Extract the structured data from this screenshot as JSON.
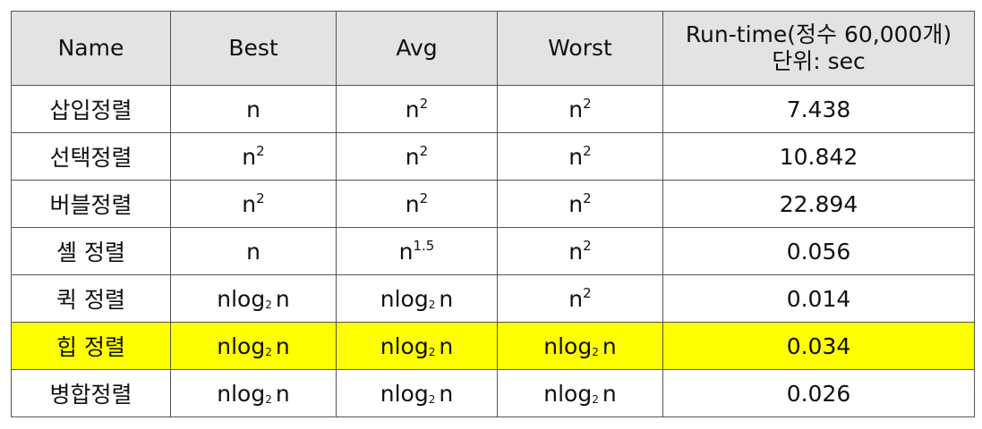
{
  "table": {
    "header": [
      "Name",
      "Best",
      "Avg",
      "Worst",
      [
        "Run-time(정수 60,000개)",
        "단위: sec"
      ]
    ],
    "highlight_row": 5,
    "rows": [
      [
        "삽입정렬",
        "n",
        {
          "text": "n",
          "sup": "2"
        },
        {
          "text": "n",
          "sup": "2"
        },
        "7.438"
      ],
      [
        "선택정렬",
        {
          "text": "n",
          "sup": "2"
        },
        {
          "text": "n",
          "sup": "2"
        },
        {
          "text": "n",
          "sup": "2"
        },
        "10.842"
      ],
      [
        "버블정렬",
        {
          "text": "n",
          "sup": "2"
        },
        {
          "text": "n",
          "sup": "2"
        },
        {
          "text": "n",
          "sup": "2"
        },
        "22.894"
      ],
      [
        "셸 정렬",
        "n",
        {
          "text": "n",
          "sup": "1.5"
        },
        {
          "text": "n",
          "sup": "2"
        },
        "0.056"
      ],
      [
        "퀵 정렬",
        {
          "text": "nlog",
          "sub": "2",
          "after": "n"
        },
        {
          "text": "nlog",
          "sub": "2",
          "after": "n"
        },
        {
          "text": "n",
          "sup": "2"
        },
        "0.014"
      ],
      [
        "힙 정렬",
        {
          "text": "nlog",
          "sub": "2",
          "after": "n"
        },
        {
          "text": "nlog",
          "sub": "2",
          "after": "n"
        },
        {
          "text": "nlog",
          "sub": "2",
          "after": "n"
        },
        "0.034"
      ],
      [
        "병합정렬",
        {
          "text": "nlog",
          "sub": "2",
          "after": "n"
        },
        {
          "text": "nlog",
          "sub": "2",
          "after": "n"
        },
        {
          "text": "nlog",
          "sub": "2",
          "after": "n"
        },
        "0.026"
      ]
    ]
  }
}
